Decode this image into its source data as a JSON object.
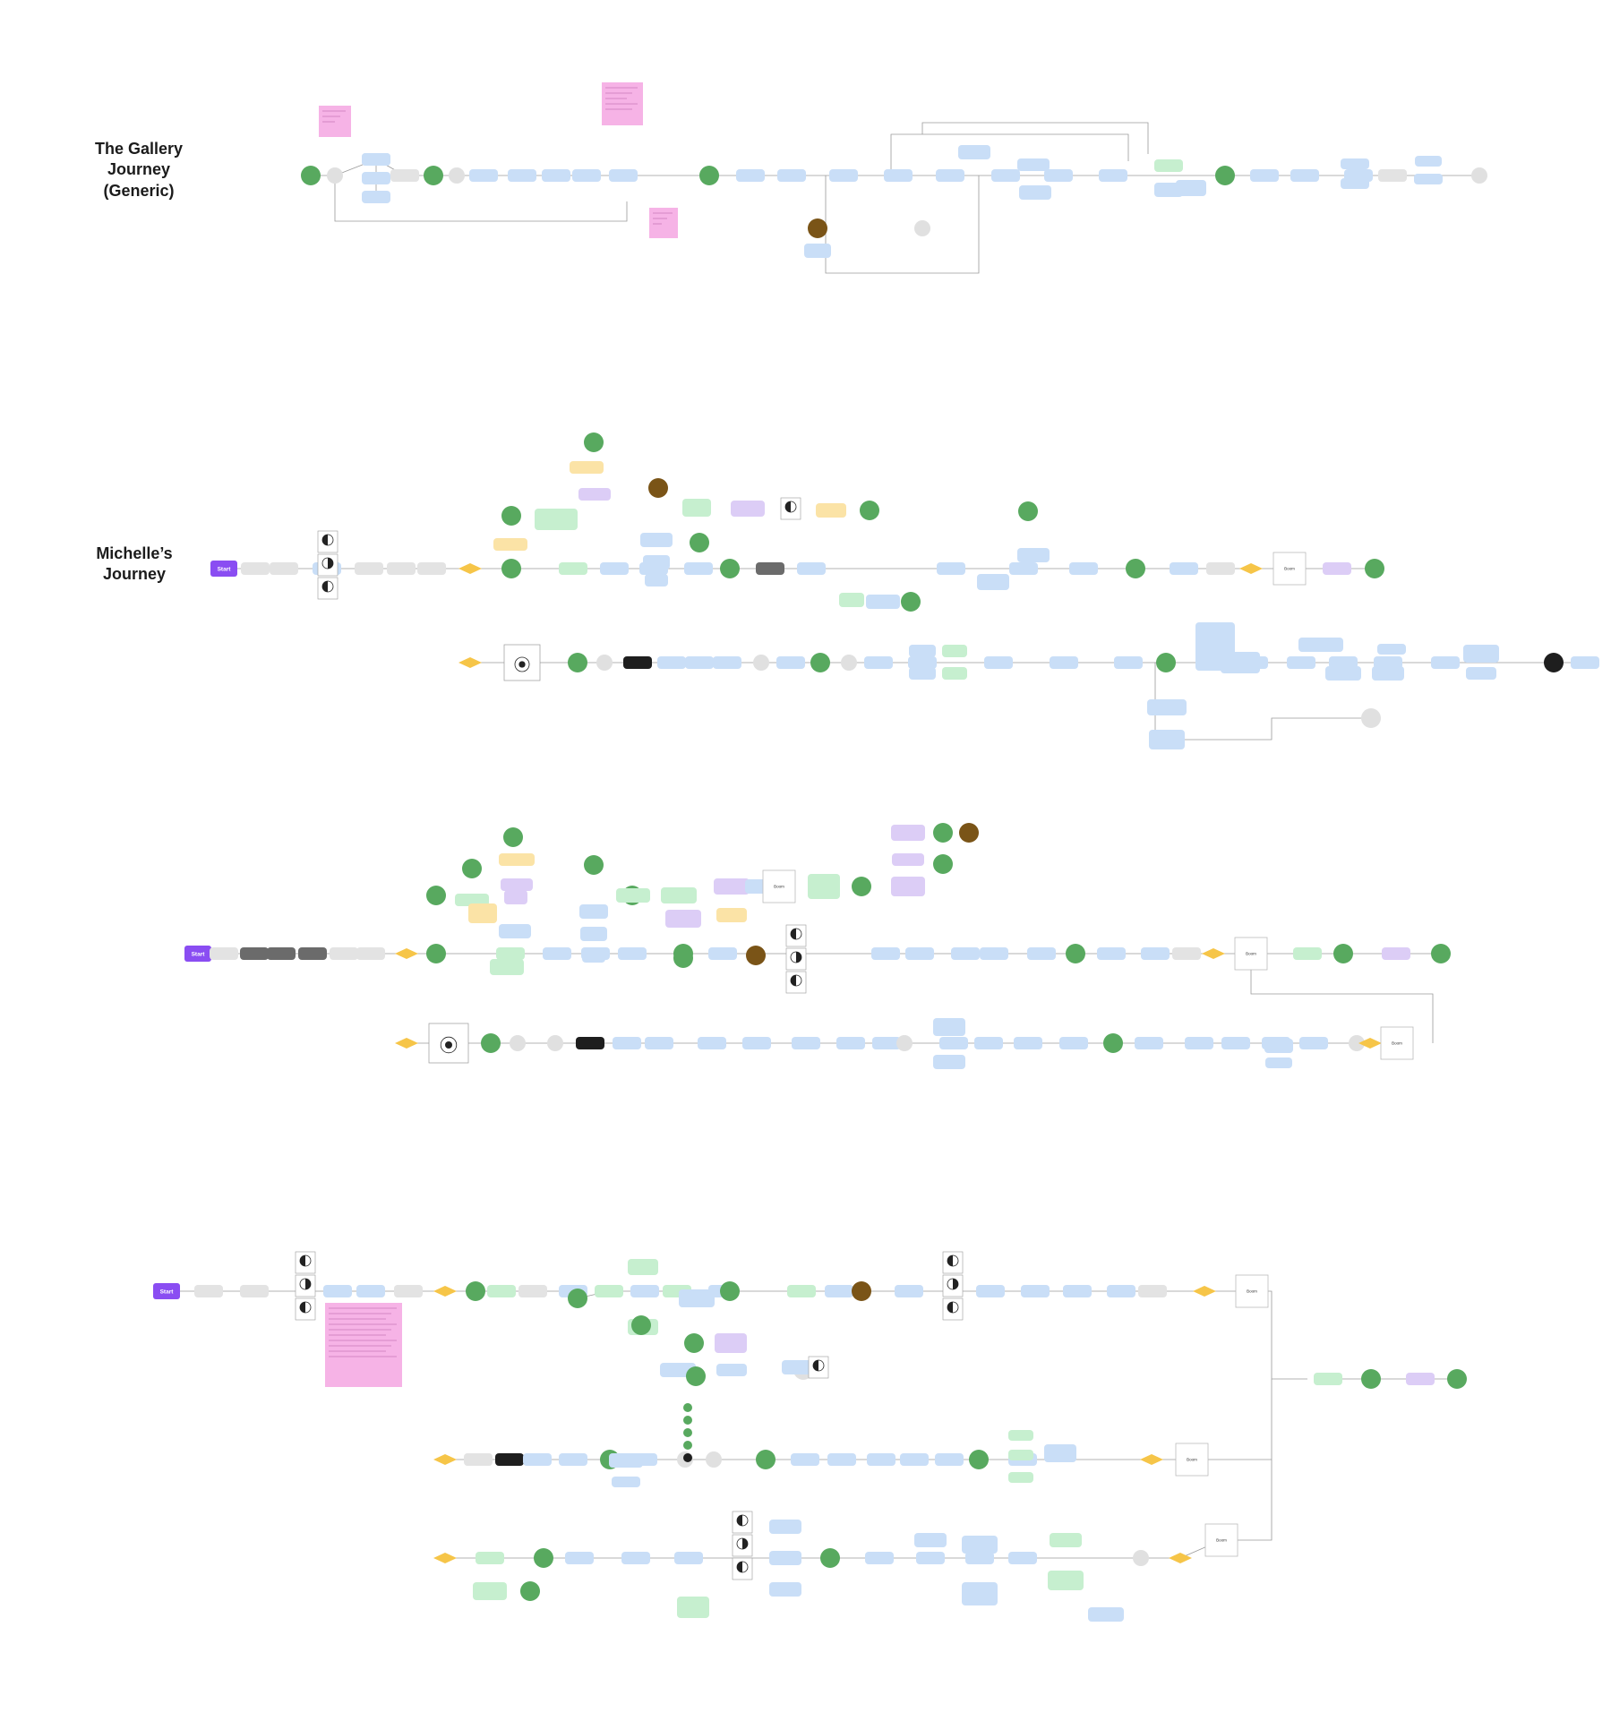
{
  "sections": [
    {
      "id": "gallery",
      "title": "The Gallery\nJourney\n(Generic)"
    },
    {
      "id": "michelle",
      "title": "Michelle’s\nJourney"
    },
    {
      "id": "journey3",
      "title": ""
    },
    {
      "id": "journey4",
      "title": ""
    }
  ],
  "labels": {
    "start": "Start",
    "boom": "Boom"
  },
  "colors": {
    "blue_node": "#c9def7",
    "green_node": "#c6efcf",
    "green_circle": "#58a95f",
    "gray_node": "#e3e3e3",
    "purple_node": "#dccdf6",
    "yellow_diamond": "#f6c548",
    "brown_circle": "#7a5417",
    "pink_sticky": "#f6b3e6",
    "start_purple": "#8a4df2",
    "dark_node": "#1e1e1e",
    "edge": "#9a9a9a"
  },
  "icons": [
    "moon-phase-icon",
    "target-icon"
  ]
}
